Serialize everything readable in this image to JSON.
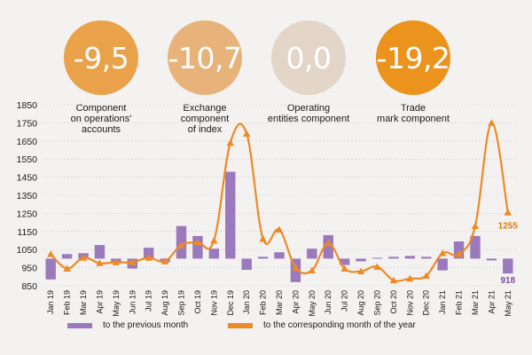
{
  "indicators": [
    {
      "value": "-9,5",
      "label": "Component\non operations'\naccounts",
      "color": "#e9a24a"
    },
    {
      "value": "-10,7",
      "label": "Exchange\ncomponent\nof index",
      "color": "#e7b37a"
    },
    {
      "value": "0,0",
      "label": "Operating\nentities component",
      "color": "#e3d6c9"
    },
    {
      "value": "-19,2",
      "label": "Trade\nmark component",
      "color": "#ec931e"
    }
  ],
  "chart_data": {
    "type": "bar",
    "categories": [
      "Jan 19",
      "Feb 19",
      "Mar 19",
      "Apr 19",
      "May 19",
      "Jun 19",
      "Jul 19",
      "Aug 19",
      "Sep 19",
      "Oct 19",
      "Nov 19",
      "Dec 19",
      "Jan 20",
      "Feb 20",
      "Mar 20",
      "Apr 20",
      "May 20",
      "Jun 20",
      "Jul 20",
      "Aug 20",
      "Sep 20",
      "Oct 20",
      "Nov 20",
      "Dec 20",
      "Jan 21",
      "Feb 21",
      "Mar 21",
      "Apr 21",
      "May 21"
    ],
    "ylim": [
      850,
      1850
    ],
    "yticks": [
      850,
      950,
      1050,
      1150,
      1250,
      1350,
      1450,
      1550,
      1650,
      1750,
      1850
    ],
    "baseline": 1000,
    "series": [
      {
        "name": "to the previous month",
        "kind": "bar",
        "color": "#9b79bd",
        "values": [
          885,
          1025,
          1030,
          1075,
          975,
          945,
          1060,
          980,
          1180,
          1125,
          1055,
          1480,
          938,
          1010,
          1035,
          870,
          1055,
          1130,
          965,
          985,
          1005,
          1010,
          1015,
          1010,
          935,
          1095,
          1125,
          990,
          918
        ]
      },
      {
        "name": "to the corresponding month of the year",
        "kind": "line",
        "color": "#ee8a25",
        "values": [
          1025,
          945,
          1005,
          975,
          980,
          980,
          1005,
          985,
          1075,
          1090,
          1100,
          1640,
          1690,
          1110,
          1160,
          950,
          935,
          1085,
          945,
          930,
          955,
          880,
          890,
          905,
          1030,
          1025,
          1180,
          1750,
          1255
        ]
      }
    ],
    "data_labels": [
      {
        "series": 1,
        "index": 28,
        "text": "1255"
      },
      {
        "series": 0,
        "index": 28,
        "text": "918"
      }
    ]
  },
  "legend": {
    "bar_label": "to the previous month",
    "line_label": "to the corresponding month of the year"
  }
}
